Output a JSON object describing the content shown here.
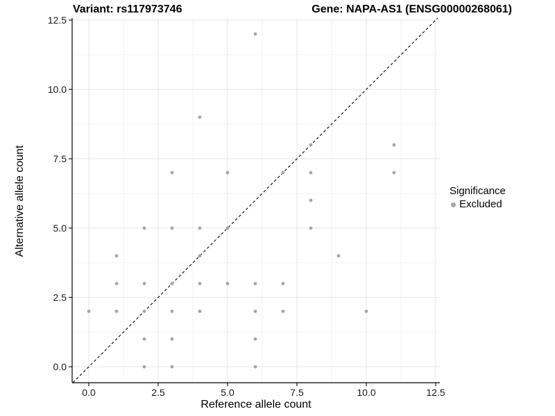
{
  "header": {
    "title_left": "Variant: rs117973746",
    "title_right": "Gene: NAPA-AS1 (ENSG00000268061)"
  },
  "legend": {
    "title": "Significance",
    "items": [
      {
        "label": "Excluded",
        "color": "#a6a6a6"
      }
    ]
  },
  "chart_data": {
    "type": "scatter",
    "title_left": "Variant: rs117973746",
    "title_right": "Gene: NAPA-AS1 (ENSG00000268061)",
    "xlabel": "Reference allele count",
    "ylabel": "Alternative allele count",
    "xlim": [
      -0.6,
      12.65
    ],
    "ylim": [
      -0.575,
      12.575
    ],
    "xticks": [
      0.0,
      2.5,
      5.0,
      7.5,
      10.0,
      12.5
    ],
    "yticks": [
      0.0,
      2.5,
      5.0,
      7.5,
      10.0,
      12.5
    ],
    "xtick_labels": [
      "0.0",
      "2.5",
      "5.0",
      "7.5",
      "10.0",
      "12.5"
    ],
    "ytick_labels": [
      "0.0",
      "2.5",
      "5.0",
      "7.5",
      "10.0",
      "12.5"
    ],
    "minor_xticks": [
      1.25,
      3.75,
      6.25,
      8.75,
      11.25
    ],
    "minor_yticks": [
      1.25,
      3.75,
      6.25,
      8.75,
      11.25
    ],
    "grid": true,
    "legend_position": "right",
    "reference_line": {
      "type": "identity y=x",
      "style": "dashed",
      "color": "#000000"
    },
    "series": [
      {
        "name": "Excluded",
        "color": "#a6a6a6",
        "points": [
          [
            0,
            2
          ],
          [
            1,
            2
          ],
          [
            1,
            3
          ],
          [
            1,
            4
          ],
          [
            2,
            0
          ],
          [
            2,
            1
          ],
          [
            2,
            2
          ],
          [
            2,
            3
          ],
          [
            2,
            5
          ],
          [
            3,
            0
          ],
          [
            3,
            1
          ],
          [
            3,
            2
          ],
          [
            3,
            3
          ],
          [
            3,
            5
          ],
          [
            3,
            7
          ],
          [
            4,
            2
          ],
          [
            4,
            3
          ],
          [
            4,
            4
          ],
          [
            4,
            5
          ],
          [
            4,
            9
          ],
          [
            5,
            3
          ],
          [
            5,
            5
          ],
          [
            5,
            7
          ],
          [
            6,
            0
          ],
          [
            6,
            1
          ],
          [
            6,
            2
          ],
          [
            6,
            3
          ],
          [
            6,
            12
          ],
          [
            7,
            2
          ],
          [
            7,
            3
          ],
          [
            7,
            7
          ],
          [
            8,
            5
          ],
          [
            8,
            6
          ],
          [
            8,
            7
          ],
          [
            8,
            8
          ],
          [
            9,
            4
          ],
          [
            10,
            2
          ],
          [
            11,
            7
          ],
          [
            11,
            8
          ]
        ]
      }
    ]
  },
  "colors": {
    "point": "#a6a6a6",
    "grid_major": "#e4e4e4",
    "grid_minor": "#f1f1f1",
    "axis_line": "#000000",
    "background": "#ffffff"
  }
}
